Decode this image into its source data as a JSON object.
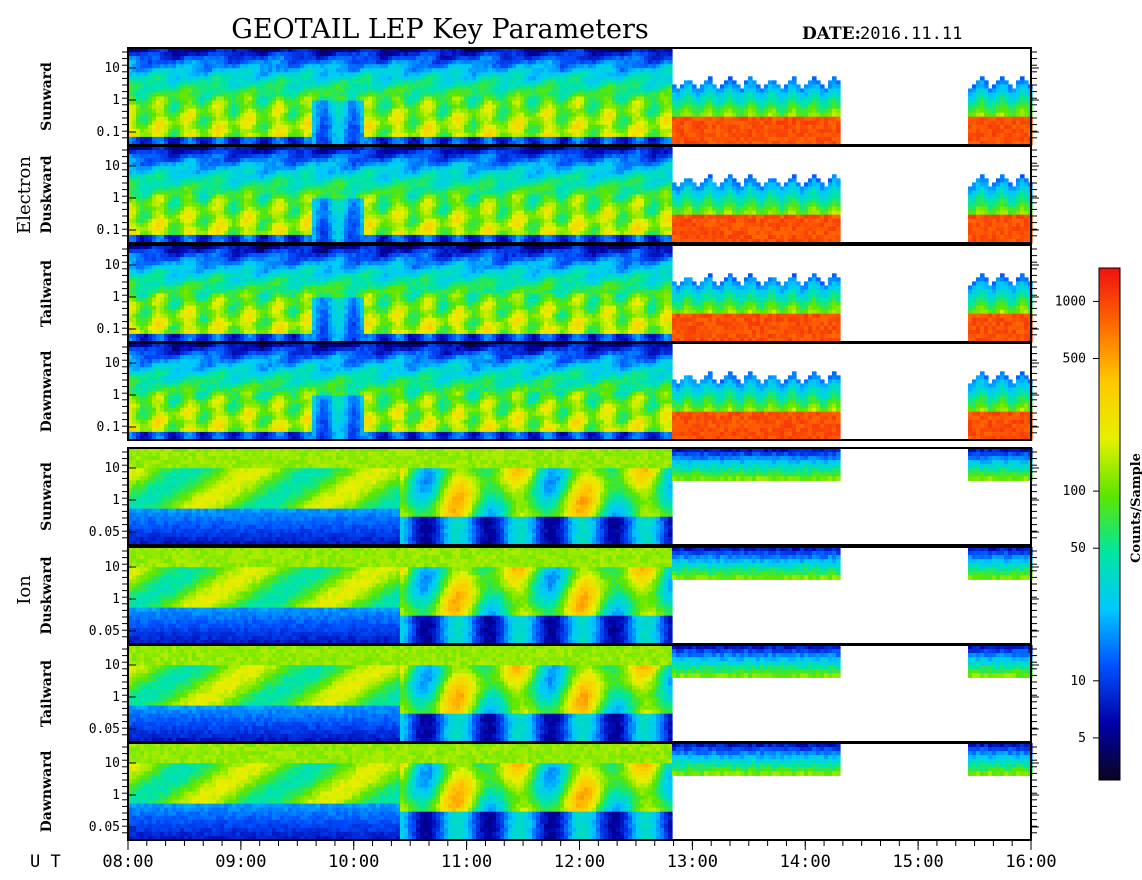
{
  "header": {
    "title": "GEOTAIL LEP Key Parameters",
    "date_label": "DATE:",
    "date_value": "2016.11.11"
  },
  "colors": {
    "background": "#ffffff",
    "frame": "#000000",
    "palette": [
      "#0a0520",
      "#0000a8",
      "#0050ff",
      "#00c8ff",
      "#00e6a0",
      "#5ce600",
      "#e6f000",
      "#ffc800",
      "#ff6a00",
      "#f01010"
    ]
  },
  "chart_data": {
    "type": "heatmap",
    "title": "GEOTAIL LEP Key Parameters",
    "x_axis": {
      "label": "U T",
      "range": [
        "08:00",
        "16:00"
      ],
      "ticks": [
        "08:00",
        "09:00",
        "10:00",
        "11:00",
        "12:00",
        "13:00",
        "14:00",
        "15:00",
        "16:00"
      ]
    },
    "groups": [
      {
        "name": "Electron",
        "panels": [
          {
            "name": "Sunward",
            "y_ticks": [
              "10",
              "1",
              "0.1"
            ]
          },
          {
            "name": "Duskward",
            "y_ticks": [
              "10",
              "1",
              "0.1"
            ]
          },
          {
            "name": "Tailward",
            "y_ticks": [
              "10",
              "1",
              "0.1"
            ]
          },
          {
            "name": "Dawnward",
            "y_ticks": [
              "10",
              "1",
              "0.1"
            ]
          }
        ]
      },
      {
        "name": "Ion",
        "panels": [
          {
            "name": "Sunward",
            "y_ticks": [
              "10",
              "1",
              "0.05"
            ]
          },
          {
            "name": "Duskward",
            "y_ticks": [
              "10",
              "1",
              "0.05"
            ]
          },
          {
            "name": "Tailward",
            "y_ticks": [
              "10",
              "1",
              "0.05"
            ]
          },
          {
            "name": "Dawnward",
            "y_ticks": [
              "10",
              "1",
              "0.05"
            ]
          }
        ]
      }
    ],
    "colorbar": {
      "label": "Counts/Sample",
      "scale": "log",
      "range": [
        3,
        1500
      ],
      "ticks": [
        "1000",
        "500",
        "100",
        "50",
        "10",
        "5"
      ]
    },
    "electron_data_gap": [
      "14:20",
      "15:25"
    ],
    "ion_data_gap": [
      "14:20",
      "15:25"
    ],
    "ion_low_energy_cutoff_after": "12:48"
  }
}
